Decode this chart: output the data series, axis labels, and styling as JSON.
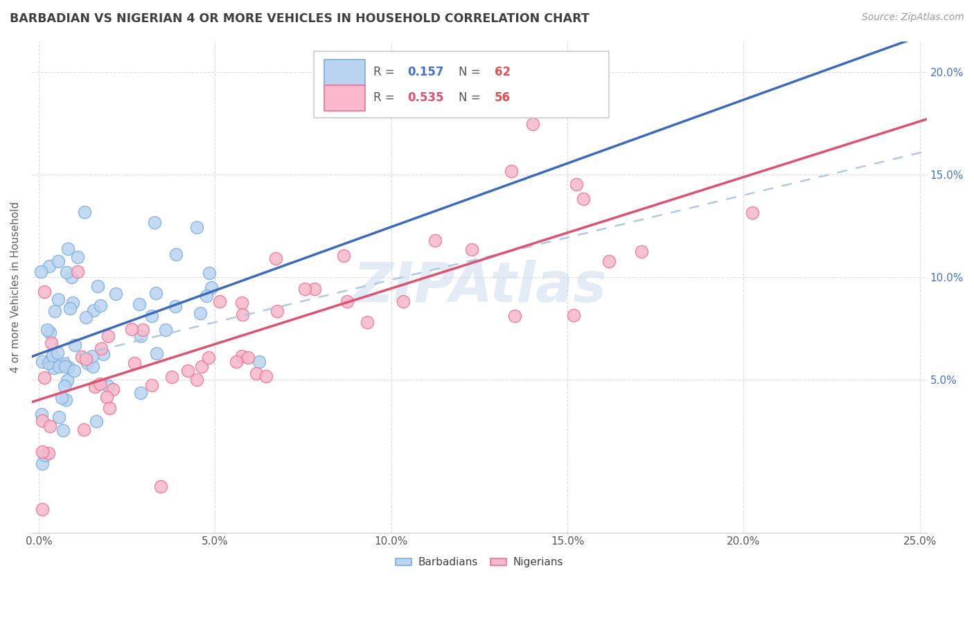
{
  "title": "BARBADIAN VS NIGERIAN 4 OR MORE VEHICLES IN HOUSEHOLD CORRELATION CHART",
  "source": "Source: ZipAtlas.com",
  "ylabel": "4 or more Vehicles in Household",
  "watermark": "ZIPAtlas",
  "barbadian_R": 0.157,
  "nigerian_R": 0.535,
  "barbadian_N": 62,
  "nigerian_N": 56,
  "xlim": [
    -0.002,
    0.252
  ],
  "ylim": [
    -0.025,
    0.215
  ],
  "xtick_vals": [
    0.0,
    0.05,
    0.1,
    0.15,
    0.2,
    0.25
  ],
  "xtick_labels": [
    "0.0%",
    "5.0%",
    "10.0%",
    "15.0%",
    "20.0%",
    "25.0%"
  ],
  "ytick_vals": [
    0.05,
    0.1,
    0.15,
    0.2
  ],
  "ytick_labels_right": [
    "5.0%",
    "10.0%",
    "15.0%",
    "20.0%"
  ],
  "scatter_color_barbadian": "#b8d4f0",
  "scatter_color_nigerian": "#f9b8cc",
  "scatter_edge_barbadian": "#7aadde",
  "scatter_edge_nigerian": "#f07090",
  "line_color_barbadian": "#3a6abf",
  "line_color_nigerian": "#e05070",
  "line_color_dashed": "#a8c4e0",
  "background_color": "#ffffff",
  "grid_color": "#d8d8d8",
  "title_color": "#404040",
  "axis_label_color": "#606060",
  "right_tick_color": "#4472c4",
  "watermark_color": "#c8d8ee",
  "watermark_alpha": 0.5,
  "title_fontsize": 12.5,
  "source_fontsize": 10,
  "legend_fontsize": 12,
  "axis_label_fontsize": 11,
  "legend_R_color_b": "#4472c4",
  "legend_N_color_b": "#e05050",
  "legend_R_color_n": "#e05070",
  "legend_N_color_n": "#e05050"
}
